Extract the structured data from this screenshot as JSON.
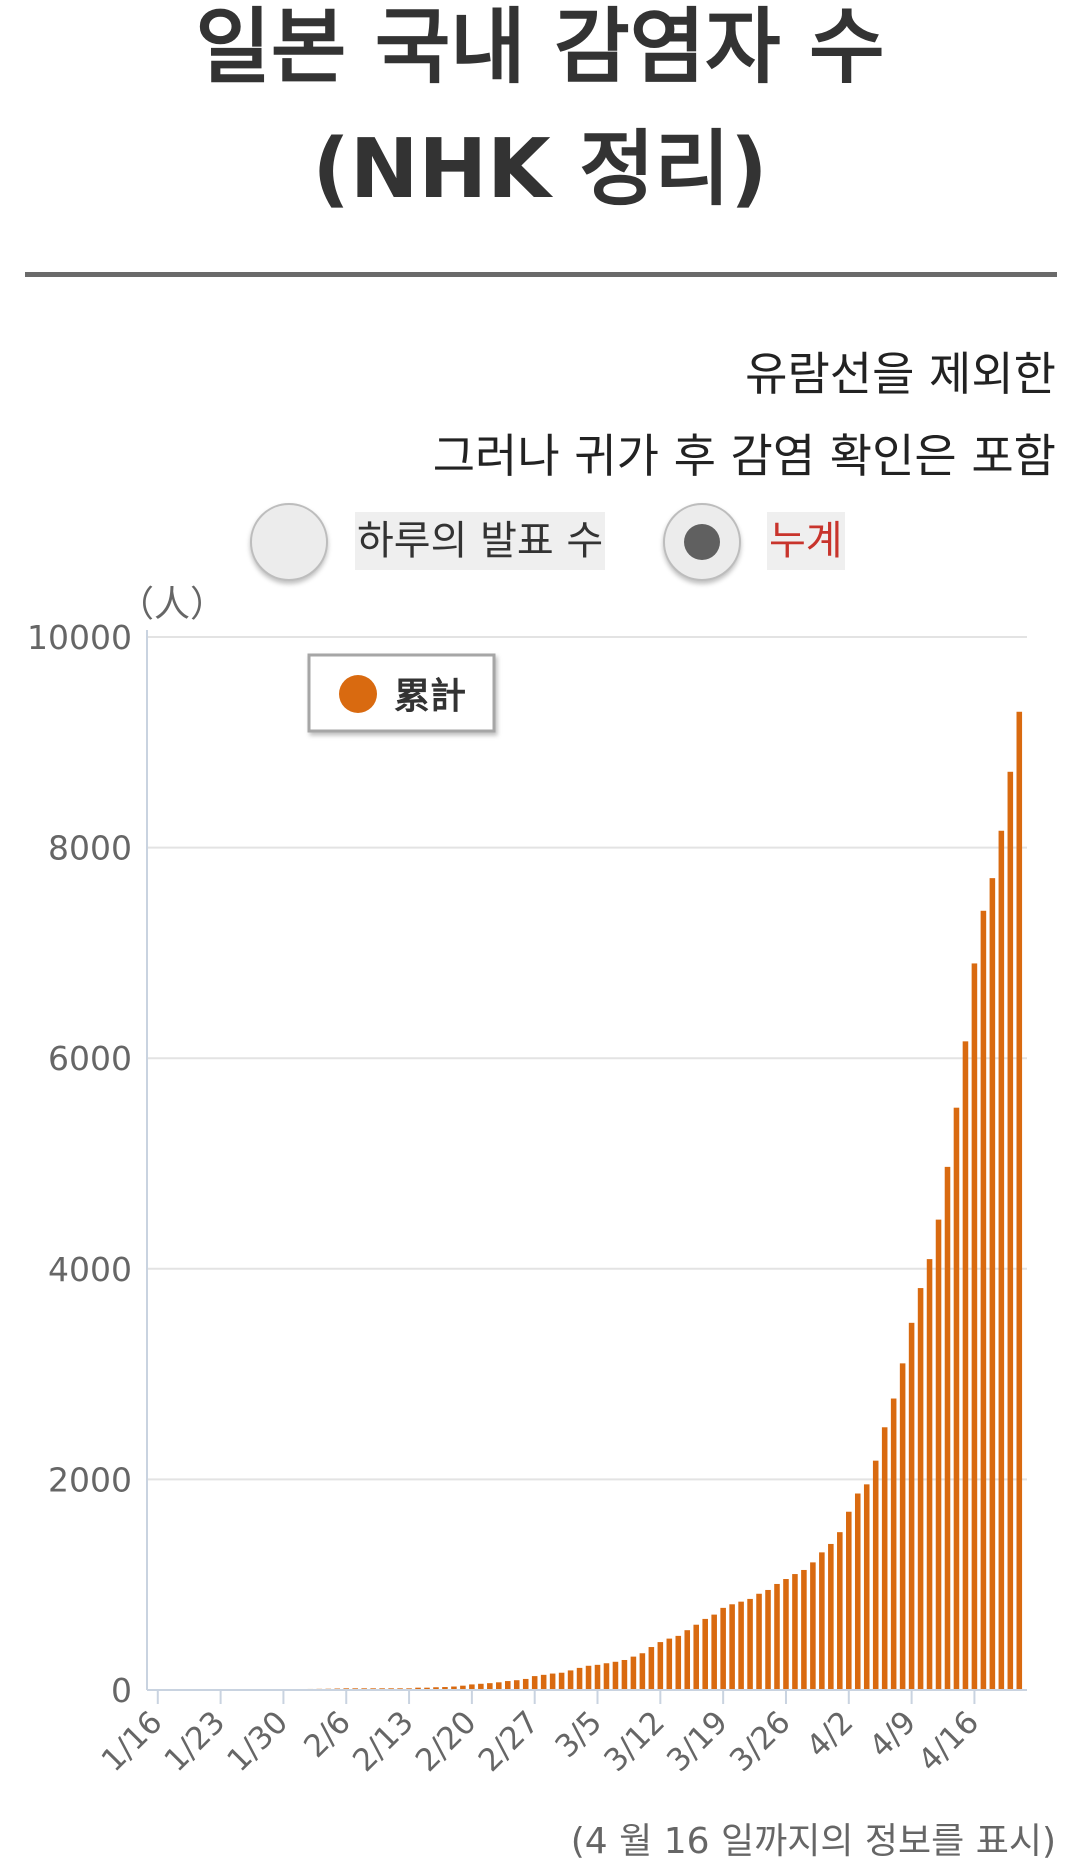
{
  "title": {
    "line1": "일본 국내 감염자 수",
    "line2": "(NHK 정리)"
  },
  "notes": {
    "line1": "유람선을 제외한",
    "line2": "그러나 귀가 후 감염 확인은 포함"
  },
  "toggle": {
    "daily_label": "하루의 발표 수",
    "cumulative_label": "누계",
    "selected": "cumulative"
  },
  "chart_data": {
    "type": "bar",
    "unit_label": "（人）",
    "legend": "累計",
    "legend_position": "top-left",
    "color": "#d96a10",
    "grid": true,
    "ylim": [
      0,
      10000
    ],
    "yticks": [
      0,
      2000,
      4000,
      6000,
      8000,
      10000
    ],
    "xticks": [
      "1/16",
      "1/23",
      "1/30",
      "2/6",
      "2/13",
      "2/20",
      "2/27",
      "3/5",
      "3/12",
      "3/19",
      "3/26",
      "4/2",
      "4/9",
      "4/16"
    ],
    "start_date": "1/16",
    "values": [
      1,
      1,
      1,
      1,
      1,
      1,
      1,
      1,
      1,
      1,
      3,
      3,
      4,
      5,
      6,
      6,
      7,
      10,
      11,
      12,
      14,
      16,
      16,
      16,
      16,
      16,
      16,
      16,
      16,
      22,
      22,
      26,
      28,
      33,
      41,
      53,
      59,
      65,
      73,
      85,
      93,
      105,
      132,
      144,
      156,
      164,
      186,
      210,
      230,
      239,
      254,
      268,
      285,
      317,
      349,
      408,
      455,
      488,
      514,
      568,
      620,
      675,
      716,
      780,
      814,
      839,
      865,
      914,
      950,
      1007,
      1054,
      1101,
      1140,
      1212,
      1307,
      1387,
      1499,
      1693,
      1866,
      1953,
      2178,
      2495,
      2768,
      3102,
      3487,
      3817,
      4092,
      4467,
      4968,
      5530,
      6160,
      6900,
      7400,
      7710,
      8160,
      8720,
      9290
    ]
  },
  "footnote": "(4 월 16 일까지의 정보를 표시)"
}
